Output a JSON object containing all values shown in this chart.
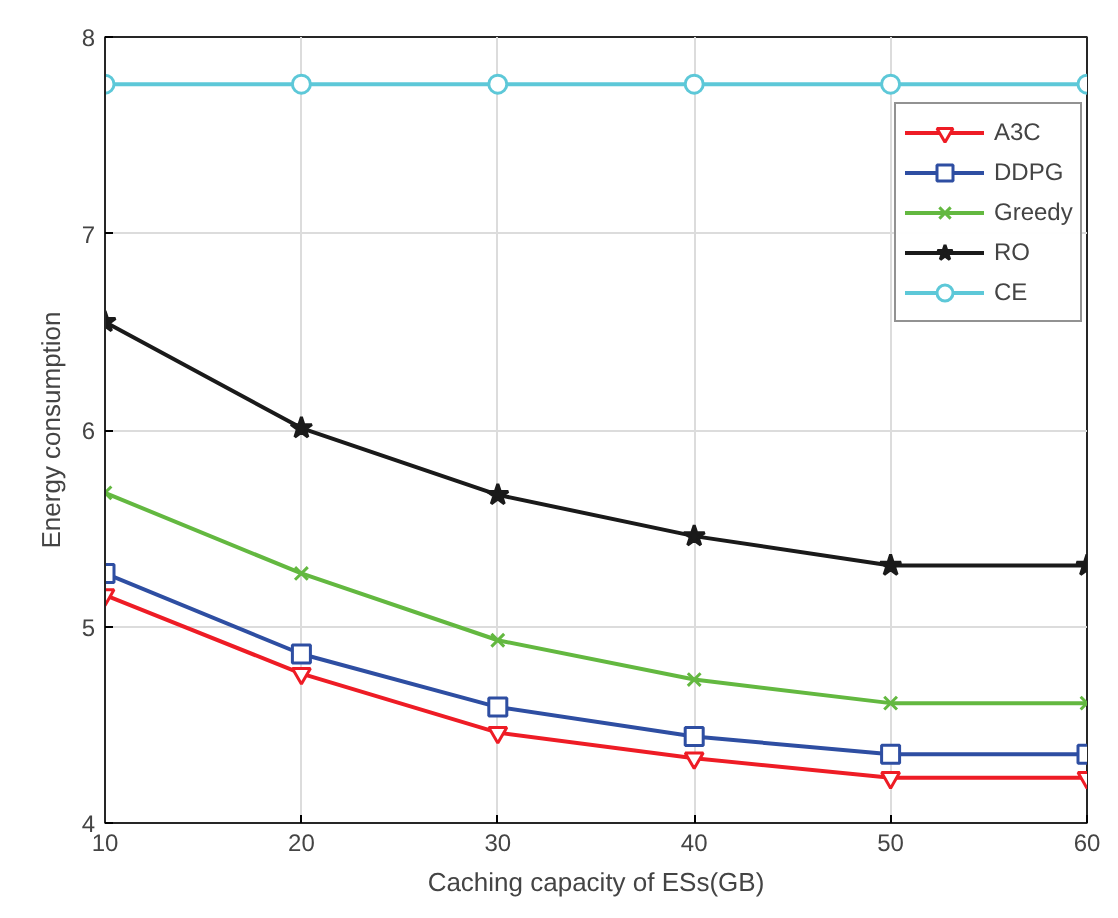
{
  "chart_data": {
    "type": "line",
    "xlabel": "Caching capacity of ESs(GB)",
    "ylabel": "Energy consumption",
    "x": [
      10,
      20,
      30,
      40,
      50,
      60
    ],
    "xlim": [
      10,
      60
    ],
    "xticks": [
      10,
      20,
      30,
      40,
      50,
      60
    ],
    "ylim": [
      4,
      8
    ],
    "yticks": [
      4,
      5,
      6,
      7,
      8
    ],
    "grid": true,
    "legend": "top right",
    "line_style": "solid",
    "series": [
      {
        "name": "A3C",
        "color": "#ee1c25",
        "marker": "triangle",
        "values": [
          5.16,
          4.76,
          4.46,
          4.33,
          4.23,
          4.23
        ]
      },
      {
        "name": "DDPG",
        "color": "#2e4ea2",
        "marker": "square",
        "values": [
          5.27,
          4.86,
          4.59,
          4.44,
          4.35,
          4.35
        ]
      },
      {
        "name": "Greedy",
        "color": "#63b840",
        "marker": "cross",
        "values": [
          5.68,
          5.27,
          4.93,
          4.73,
          4.61,
          4.61
        ]
      },
      {
        "name": "RO",
        "color": "#1a1a1a",
        "marker": "star",
        "values": [
          6.55,
          6.01,
          5.67,
          5.46,
          5.31,
          5.31
        ]
      },
      {
        "name": "CE",
        "color": "#5dc8d8",
        "marker": "circle",
        "values": [
          7.76,
          7.76,
          7.76,
          7.76,
          7.76,
          7.76
        ]
      }
    ]
  }
}
